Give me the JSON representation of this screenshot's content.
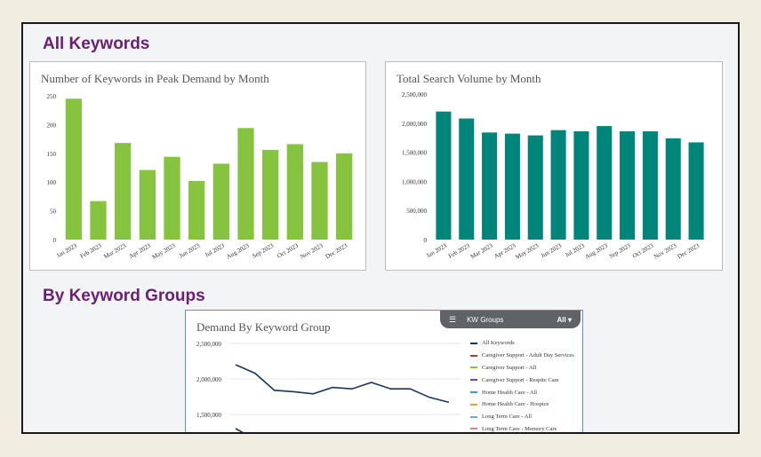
{
  "sections": {
    "all_keywords": "All Keywords",
    "by_groups": "By Keyword Groups"
  },
  "filter": {
    "label": "KW Groups",
    "value": "All ▾",
    "icon": "filter-icon"
  },
  "chart_data": [
    {
      "type": "bar",
      "title": "Number of Keywords in Peak Demand by Month",
      "categories": [
        "Jan 2023",
        "Feb 2023",
        "Mar 2023",
        "Apr 2023",
        "May 2023",
        "Jun 2023",
        "Jul 2023",
        "Aug 2023",
        "Sep 2023",
        "Oct 2023",
        "Nov 2023",
        "Dec 2023"
      ],
      "values": [
        245,
        67,
        168,
        121,
        144,
        102,
        132,
        194,
        156,
        166,
        135,
        150
      ],
      "ylim": [
        0,
        250
      ],
      "yticks": [
        "0",
        "50",
        "100",
        "150",
        "200",
        "250"
      ],
      "color": "#86c33f"
    },
    {
      "type": "bar",
      "title": "Total Search Volume by Month",
      "categories": [
        "Jan 2023",
        "Feb 2023",
        "Mar 2023",
        "Apr 2023",
        "May 2023",
        "Jun 2023",
        "Jul 2023",
        "Aug 2023",
        "Sep 2023",
        "Oct 2023",
        "Nov 2023",
        "Dec 2023"
      ],
      "values": [
        2200000,
        2080000,
        1840000,
        1820000,
        1790000,
        1880000,
        1860000,
        1950000,
        1860000,
        1860000,
        1740000,
        1670000
      ],
      "ylim": [
        0,
        2500000
      ],
      "yticks": [
        "0",
        "500,000",
        "1,000,000",
        "1,500,000",
        "2,000,000",
        "2,500,000"
      ],
      "color": "#00857a"
    },
    {
      "type": "line",
      "title": "Demand By Keyword Group",
      "ylim_visible": [
        1500000,
        2500000
      ],
      "yticks": [
        "1,500,000",
        "2,000,000",
        "2,500,000"
      ],
      "series": [
        {
          "name": "All Keywords",
          "color": "#17375e",
          "values": [
            2200000,
            2080000,
            1840000,
            1820000,
            1790000,
            1880000,
            1860000,
            1950000,
            1860000,
            1860000,
            1740000,
            1670000
          ]
        },
        {
          "name": "Caregiver Support - Adult Day Services",
          "color": "#c9302c"
        },
        {
          "name": "Caregiver Support - All",
          "color": "#8bc34a"
        },
        {
          "name": "Caregiver Support - Respite Care",
          "color": "#7b3fa0"
        },
        {
          "name": "Home Health Care - All",
          "color": "#26a6c8"
        },
        {
          "name": "Home Health Care - Hospice",
          "color": "#f39c34"
        },
        {
          "name": "Long Term Care - All",
          "color": "#6fa8dc"
        },
        {
          "name": "Long Term Care - Memory Care",
          "color": "#e08080"
        }
      ],
      "partial_series": {
        "name": "second-line",
        "values": [
          1300000,
          1240000
        ]
      }
    }
  ]
}
